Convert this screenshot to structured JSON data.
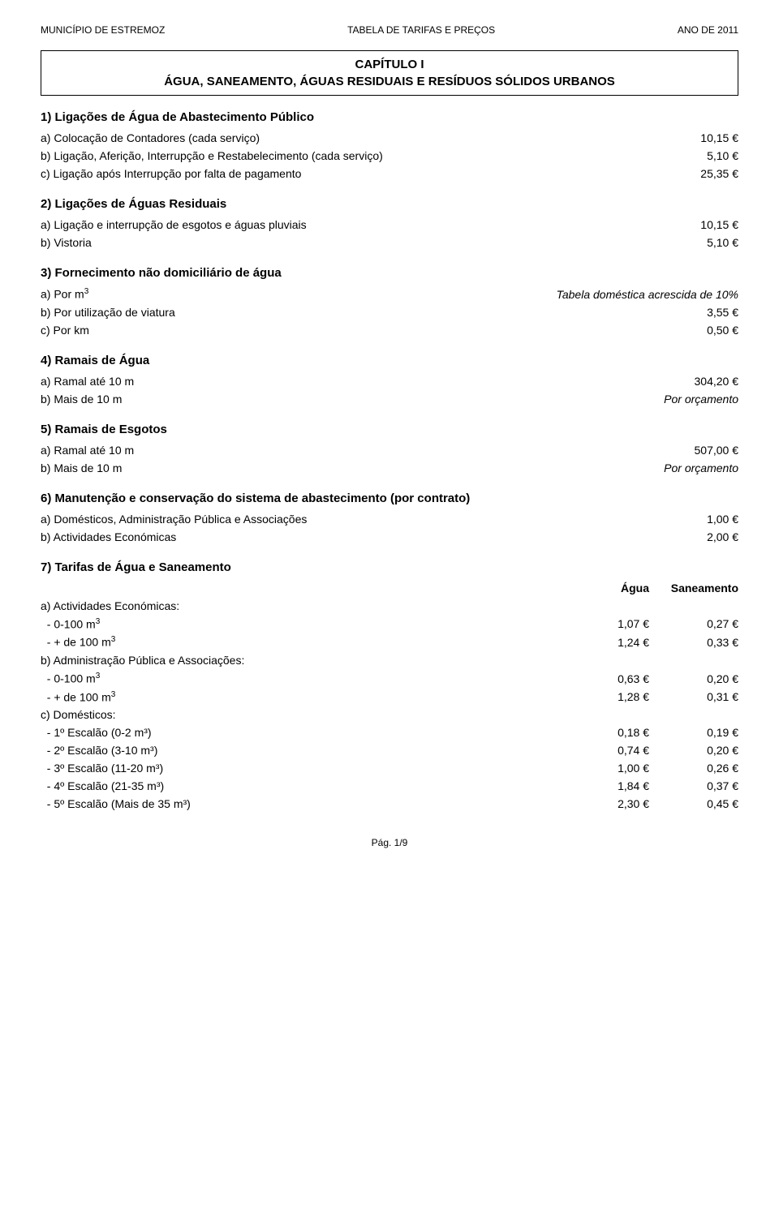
{
  "header": {
    "left": "MUNICÍPIO DE ESTREMOZ",
    "center": "TABELA DE TARIFAS E PREÇOS",
    "right": "ANO DE 2011"
  },
  "title": {
    "cap": "CAPÍTULO I",
    "sub": "ÁGUA, SANEAMENTO, ÁGUAS RESIDUAIS E RESÍDUOS SÓLIDOS URBANOS"
  },
  "s1": {
    "head": "1) Ligações de Água de Abastecimento Público",
    "a": {
      "label": "a) Colocação de Contadores (cada serviço)",
      "val": "10,15 €"
    },
    "b": {
      "label": "b) Ligação, Aferição, Interrupção e Restabelecimento (cada serviço)",
      "val": "5,10 €"
    },
    "c": {
      "label": "c) Ligação após Interrupção por falta de pagamento",
      "val": "25,35 €"
    }
  },
  "s2": {
    "head": "2) Ligações de Águas Residuais",
    "a": {
      "label": "a) Ligação e interrupção de esgotos e águas pluviais",
      "val": "10,15 €"
    },
    "b": {
      "label": "b) Vistoria",
      "val": "5,10 €"
    }
  },
  "s3": {
    "head": "3) Fornecimento não domiciliário de água",
    "a": {
      "label": "a) Por m",
      "sup": "3",
      "val": "Tabela doméstica acrescida de 10%"
    },
    "b": {
      "label": "b) Por utilização de viatura",
      "val": "3,55 €"
    },
    "c": {
      "label": "c) Por km",
      "val": "0,50 €"
    }
  },
  "s4": {
    "head": "4) Ramais de Água",
    "a": {
      "label": "a) Ramal até 10 m",
      "val": "304,20 €"
    },
    "b": {
      "label": "b) Mais de 10 m",
      "val": "Por orçamento"
    }
  },
  "s5": {
    "head": "5) Ramais de Esgotos",
    "a": {
      "label": "a) Ramal até 10 m",
      "val": "507,00 €"
    },
    "b": {
      "label": "b) Mais de 10 m",
      "val": "Por orçamento"
    }
  },
  "s6": {
    "head": "6) Manutenção e conservação do sistema de abastecimento (por contrato)",
    "a": {
      "label": "a) Domésticos, Administração Pública e Associações",
      "val": "1,00 €"
    },
    "b": {
      "label": "b) Actividades Económicas",
      "val": "2,00 €"
    }
  },
  "s7": {
    "head": "7) Tarifas de Água e Saneamento",
    "col1": "Água",
    "col2": "Saneamento",
    "a_head": "a) Actividades Económicas:",
    "a1": {
      "label": "- 0-100 m",
      "sup": "3",
      "v1": "1,07 €",
      "v2": "0,27 €"
    },
    "a2": {
      "label": "-  + de 100 m",
      "sup": "3",
      "v1": "1,24 €",
      "v2": "0,33 €"
    },
    "b_head": "b) Administração Pública e Associações:",
    "b1": {
      "label": "- 0-100 m",
      "sup": "3",
      "v1": "0,63 €",
      "v2": "0,20 €"
    },
    "b2": {
      "label": "-  + de 100 m",
      "sup": "3",
      "v1": "1,28 €",
      "v2": "0,31 €"
    },
    "c_head": "c) Domésticos:",
    "c1": {
      "label": "- 1º Escalão (0-2 m³)",
      "v1": "0,18 €",
      "v2": "0,19 €"
    },
    "c2": {
      "label": "- 2º Escalão (3-10 m³)",
      "v1": "0,74 €",
      "v2": "0,20 €"
    },
    "c3": {
      "label": "- 3º Escalão (11-20 m³)",
      "v1": "1,00 €",
      "v2": "0,26 €"
    },
    "c4": {
      "label": "- 4º Escalão (21-35 m³)",
      "v1": "1,84 €",
      "v2": "0,37 €"
    },
    "c5": {
      "label": "- 5º Escalão (Mais de 35 m³)",
      "v1": "2,30 €",
      "v2": "0,45 €"
    }
  },
  "footer": "Pág. 1/9"
}
